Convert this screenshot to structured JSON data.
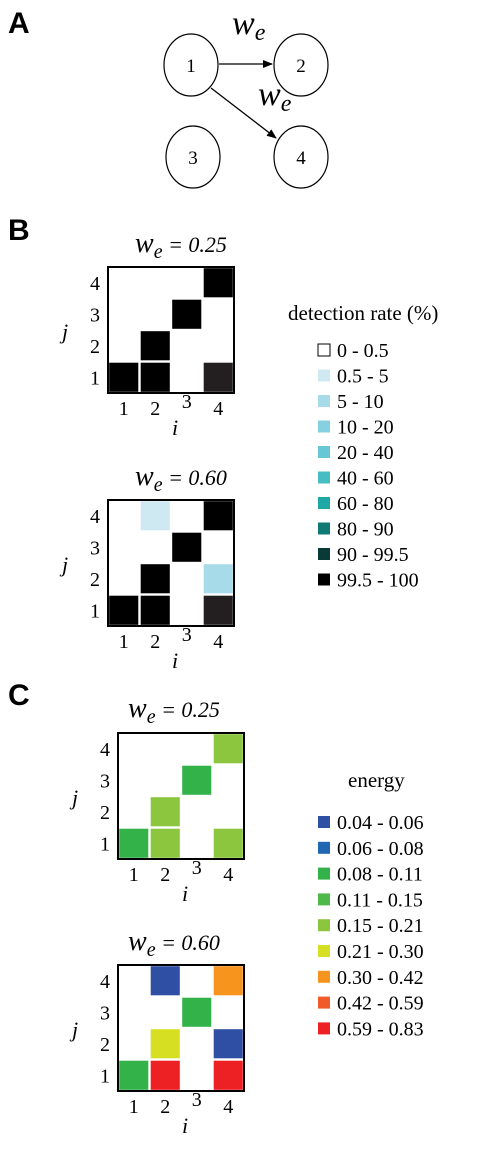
{
  "panels": {
    "a": "A",
    "b": "B",
    "c": "C"
  },
  "graph": {
    "nodes": [
      "1",
      "2",
      "3",
      "4"
    ],
    "edges": [
      {
        "from": "1",
        "to": "2",
        "label_main": "w",
        "label_sub": "e"
      },
      {
        "from": "1",
        "to": "4",
        "label_main": "w",
        "label_sub": "e"
      }
    ]
  },
  "axes": {
    "x_label": "i",
    "y_label": "j",
    "ticks": [
      "1",
      "2",
      "3",
      "4"
    ]
  },
  "detection": {
    "legend_title": "detection rate (%)",
    "legend_items": [
      {
        "label": "0 - 0.5",
        "color": "#ffffff"
      },
      {
        "label": "0.5 - 5",
        "color": "#cfe9f2"
      },
      {
        "label": "5 - 10",
        "color": "#a8dbe9"
      },
      {
        "label": "10 - 20",
        "color": "#86d0e0"
      },
      {
        "label": "20 - 40",
        "color": "#67c7d4"
      },
      {
        "label": "40 - 60",
        "color": "#47bcc2"
      },
      {
        "label": "60 - 80",
        "color": "#1ea7a4"
      },
      {
        "label": "80 - 90",
        "color": "#0e7a73"
      },
      {
        "label": "90 - 99.5",
        "color": "#0a3a38"
      },
      {
        "label": "99.5 - 100",
        "color": "#000000"
      }
    ],
    "matrices": [
      {
        "title_main": "w",
        "title_sub": "e",
        "title_value": " = 0.25",
        "cells": [
          {
            "i": 1,
            "j": 1,
            "color": "#000000"
          },
          {
            "i": 2,
            "j": 1,
            "color": "#000000"
          },
          {
            "i": 2,
            "j": 2,
            "color": "#000000"
          },
          {
            "i": 3,
            "j": 3,
            "color": "#000000"
          },
          {
            "i": 4,
            "j": 4,
            "color": "#000000"
          },
          {
            "i": 4,
            "j": 1,
            "color": "#231f20"
          }
        ]
      },
      {
        "title_main": "w",
        "title_sub": "e",
        "title_value": " = 0.60",
        "cells": [
          {
            "i": 1,
            "j": 1,
            "color": "#000000"
          },
          {
            "i": 2,
            "j": 1,
            "color": "#000000"
          },
          {
            "i": 2,
            "j": 2,
            "color": "#000000"
          },
          {
            "i": 3,
            "j": 3,
            "color": "#000000"
          },
          {
            "i": 4,
            "j": 4,
            "color": "#000000"
          },
          {
            "i": 4,
            "j": 1,
            "color": "#231f20"
          },
          {
            "i": 2,
            "j": 4,
            "color": "#cfe9f2"
          },
          {
            "i": 4,
            "j": 2,
            "color": "#a8dbe9"
          }
        ]
      }
    ]
  },
  "energy": {
    "legend_title": "energy",
    "legend_items": [
      {
        "label": "0.04 - 0.06",
        "color": "#2e4fa3"
      },
      {
        "label": "0.06 - 0.08",
        "color": "#1f67b1"
      },
      {
        "label": "0.08 - 0.11",
        "color": "#34b24a"
      },
      {
        "label": "0.11 - 0.15",
        "color": "#4fb84a"
      },
      {
        "label": "0.15 - 0.21",
        "color": "#8cc63f"
      },
      {
        "label": "0.21 - 0.30",
        "color": "#d7df23"
      },
      {
        "label": "0.30 - 0.42",
        "color": "#f7941d"
      },
      {
        "label": "0.42 - 0.59",
        "color": "#f15a29"
      },
      {
        "label": "0.59 - 0.83",
        "color": "#ed2024"
      }
    ],
    "matrices": [
      {
        "title_main": "w",
        "title_sub": "e",
        "title_value": " = 0.25",
        "cells": [
          {
            "i": 1,
            "j": 1,
            "color": "#34b24a"
          },
          {
            "i": 2,
            "j": 1,
            "color": "#8cc63f"
          },
          {
            "i": 2,
            "j": 2,
            "color": "#8cc63f"
          },
          {
            "i": 3,
            "j": 3,
            "color": "#34b24a"
          },
          {
            "i": 4,
            "j": 4,
            "color": "#8cc63f"
          },
          {
            "i": 4,
            "j": 1,
            "color": "#8cc63f"
          }
        ]
      },
      {
        "title_main": "w",
        "title_sub": "e",
        "title_value": " = 0.60",
        "cells": [
          {
            "i": 1,
            "j": 1,
            "color": "#34b24a"
          },
          {
            "i": 2,
            "j": 1,
            "color": "#ed2024"
          },
          {
            "i": 2,
            "j": 2,
            "color": "#d7df23"
          },
          {
            "i": 2,
            "j": 4,
            "color": "#2e4fa3"
          },
          {
            "i": 3,
            "j": 3,
            "color": "#34b24a"
          },
          {
            "i": 4,
            "j": 4,
            "color": "#f7941d"
          },
          {
            "i": 4,
            "j": 2,
            "color": "#2e4fa3"
          },
          {
            "i": 4,
            "j": 1,
            "color": "#ed2024"
          }
        ]
      }
    ]
  }
}
